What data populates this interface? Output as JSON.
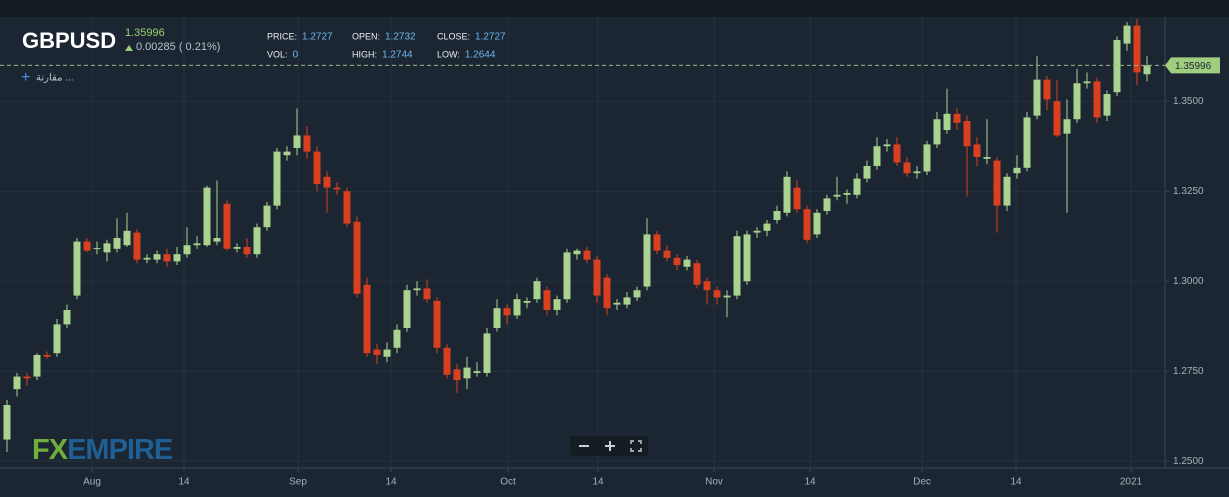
{
  "chart_data": {
    "type": "candlestick",
    "symbol": "GBPUSD",
    "last_price": 1.35996,
    "change_label": "0.00285 ( 0.21%)",
    "compare_label": "مقارنة ...",
    "logo": [
      "FX",
      "EMPIRE"
    ],
    "stats": [
      {
        "label": "PRICE:",
        "value": "1.2727"
      },
      {
        "label": "OPEN:",
        "value": "1.2732"
      },
      {
        "label": "CLOSE:",
        "value": "1.2727"
      },
      {
        "label": "VOL:",
        "value": "0"
      },
      {
        "label": "HIGH:",
        "value": "1.2744"
      },
      {
        "label": "LOW:",
        "value": "1.2644"
      }
    ],
    "up_color": "#a9d38f",
    "down_color": "#d8401f",
    "grid": true,
    "ylim": [
      1.2481,
      1.3734
    ],
    "yticks": [
      {
        "value": 1.25,
        "label": "1.2500"
      },
      {
        "value": 1.275,
        "label": "1.2750"
      },
      {
        "value": 1.3,
        "label": "1.3000"
      },
      {
        "value": 1.325,
        "label": "1.3250"
      },
      {
        "value": 1.35,
        "label": "1.3500"
      }
    ],
    "xlim": [
      -0.7,
      115.8
    ],
    "xticks": [
      {
        "value": 8.5,
        "label": "Aug"
      },
      {
        "value": 17.7,
        "label": "14"
      },
      {
        "value": 29.1,
        "label": "Sep"
      },
      {
        "value": 38.4,
        "label": "14"
      },
      {
        "value": 50.1,
        "label": "Oct"
      },
      {
        "value": 59.1,
        "label": "14"
      },
      {
        "value": 70.7,
        "label": "Nov"
      },
      {
        "value": 80.3,
        "label": "14"
      },
      {
        "value": 91.5,
        "label": "Dec"
      },
      {
        "value": 100.9,
        "label": "14"
      },
      {
        "value": 112.4,
        "label": "2021"
      }
    ],
    "open": [
      1.256,
      1.27,
      1.2735,
      1.2735,
      1.2795,
      1.28,
      1.288,
      1.296,
      1.311,
      1.309,
      1.308,
      1.309,
      1.31,
      1.3135,
      1.306,
      1.306,
      1.3075,
      1.3055,
      1.3075,
      1.31,
      1.31,
      1.311,
      1.3215,
      1.309,
      1.3095,
      1.3075,
      1.315,
      1.321,
      1.335,
      1.337,
      1.3405,
      1.336,
      1.329,
      1.326,
      1.325,
      1.3165,
      1.299,
      1.281,
      1.279,
      1.2815,
      1.287,
      1.2975,
      1.298,
      1.2945,
      1.2815,
      1.2755,
      1.273,
      1.2745,
      1.2745,
      1.287,
      1.2925,
      1.2905,
      1.294,
      1.295,
      1.2975,
      1.292,
      1.295,
      1.3075,
      1.3085,
      1.306,
      1.301,
      1.2935,
      1.2935,
      1.2955,
      1.2985,
      1.313,
      1.3085,
      1.3065,
      1.304,
      1.305,
      1.3,
      1.2975,
      1.2955,
      1.296,
      1.3,
      1.3135,
      1.314,
      1.317,
      1.319,
      1.326,
      1.32,
      1.313,
      1.3195,
      1.3235,
      1.324,
      1.324,
      1.3285,
      1.332,
      1.3375,
      1.338,
      1.333,
      1.33,
      1.3305,
      1.338,
      1.342,
      1.3465,
      1.3445,
      1.338,
      1.334,
      1.3335,
      1.321,
      1.33,
      1.3315,
      1.346,
      1.356,
      1.35,
      1.341,
      1.345,
      1.355,
      1.3555,
      1.346,
      1.3525,
      1.366,
      1.371,
      1.3575
    ],
    "high": [
      1.267,
      1.2745,
      1.2745,
      1.28,
      1.2805,
      1.2895,
      1.2935,
      1.312,
      1.312,
      1.311,
      1.3115,
      1.3175,
      1.319,
      1.3145,
      1.3075,
      1.3085,
      1.309,
      1.3095,
      1.315,
      1.3125,
      1.3265,
      1.328,
      1.3225,
      1.3105,
      1.312,
      1.316,
      1.322,
      1.337,
      1.3375,
      1.348,
      1.343,
      1.3375,
      1.3305,
      1.3275,
      1.326,
      1.318,
      1.301,
      1.2825,
      1.283,
      1.288,
      1.299,
      1.3,
      1.3005,
      1.2955,
      1.2825,
      1.277,
      1.279,
      1.2775,
      1.287,
      1.295,
      1.2935,
      1.2965,
      1.2955,
      1.301,
      1.2985,
      1.296,
      1.309,
      1.309,
      1.3095,
      1.307,
      1.302,
      1.295,
      1.297,
      1.2985,
      1.3175,
      1.314,
      1.31,
      1.3075,
      1.307,
      1.306,
      1.301,
      1.2985,
      1.2975,
      1.314,
      1.314,
      1.315,
      1.317,
      1.321,
      1.3305,
      1.328,
      1.321,
      1.32,
      1.324,
      1.329,
      1.3255,
      1.33,
      1.3335,
      1.34,
      1.3395,
      1.34,
      1.3345,
      1.332,
      1.339,
      1.347,
      1.3535,
      1.348,
      1.346,
      1.34,
      1.345,
      1.3345,
      1.33,
      1.335,
      1.347,
      1.3625,
      1.357,
      1.356,
      1.3505,
      1.359,
      1.358,
      1.3565,
      1.353,
      1.368,
      1.372,
      1.373,
      1.3625
    ],
    "low": [
      1.2525,
      1.268,
      1.271,
      1.2725,
      1.2785,
      1.279,
      1.287,
      1.295,
      1.308,
      1.3075,
      1.3055,
      1.308,
      1.3095,
      1.305,
      1.305,
      1.305,
      1.304,
      1.3045,
      1.3065,
      1.309,
      1.3095,
      1.31,
      1.3085,
      1.308,
      1.3065,
      1.3065,
      1.314,
      1.32,
      1.3335,
      1.335,
      1.334,
      1.325,
      1.319,
      1.324,
      1.315,
      1.2955,
      1.279,
      1.277,
      1.2775,
      1.28,
      1.286,
      1.296,
      1.294,
      1.28,
      1.273,
      1.269,
      1.27,
      1.2735,
      1.2735,
      1.286,
      1.288,
      1.2895,
      1.2925,
      1.294,
      1.2905,
      1.2905,
      1.294,
      1.306,
      1.305,
      1.294,
      1.2905,
      1.292,
      1.2925,
      1.2945,
      1.2975,
      1.3075,
      1.3055,
      1.303,
      1.303,
      1.298,
      1.2935,
      1.2935,
      1.29,
      1.295,
      1.299,
      1.312,
      1.3125,
      1.316,
      1.318,
      1.319,
      1.3105,
      1.312,
      1.3185,
      1.3225,
      1.3215,
      1.323,
      1.3275,
      1.331,
      1.336,
      1.332,
      1.329,
      1.3285,
      1.3295,
      1.337,
      1.341,
      1.342,
      1.3235,
      1.332,
      1.3325,
      1.3135,
      1.3195,
      1.3285,
      1.3305,
      1.345,
      1.3475,
      1.34,
      1.319,
      1.344,
      1.3535,
      1.344,
      1.3445,
      1.3515,
      1.364,
      1.3545,
      1.3555
    ],
    "close": [
      1.2656,
      1.2735,
      1.273,
      1.2795,
      1.279,
      1.288,
      1.292,
      1.311,
      1.3085,
      1.3092,
      1.3105,
      1.312,
      1.314,
      1.306,
      1.3065,
      1.3075,
      1.3055,
      1.3075,
      1.31,
      1.3105,
      1.326,
      1.312,
      1.309,
      1.3095,
      1.3075,
      1.315,
      1.321,
      1.336,
      1.336,
      1.3405,
      1.336,
      1.327,
      1.326,
      1.3255,
      1.316,
      1.2965,
      1.28,
      1.2795,
      1.281,
      1.2865,
      1.2975,
      1.298,
      1.295,
      1.2815,
      1.274,
      1.2725,
      1.276,
      1.275,
      1.2855,
      1.2925,
      1.2905,
      1.295,
      1.2945,
      1.3,
      1.292,
      1.295,
      1.308,
      1.3085,
      1.306,
      1.296,
      1.2925,
      1.294,
      1.2955,
      1.2975,
      1.313,
      1.3085,
      1.3065,
      1.3045,
      1.306,
      1.299,
      1.2975,
      1.2955,
      1.296,
      1.3125,
      1.313,
      1.314,
      1.316,
      1.3195,
      1.329,
      1.32,
      1.3115,
      1.319,
      1.323,
      1.324,
      1.3245,
      1.3285,
      1.332,
      1.3375,
      1.338,
      1.333,
      1.33,
      1.3305,
      1.338,
      1.345,
      1.3465,
      1.344,
      1.3375,
      1.3345,
      1.3345,
      1.321,
      1.329,
      1.3315,
      1.3455,
      1.356,
      1.3505,
      1.3405,
      1.345,
      1.355,
      1.3555,
      1.3455,
      1.352,
      1.367,
      1.371,
      1.358,
      1.35996
    ]
  }
}
